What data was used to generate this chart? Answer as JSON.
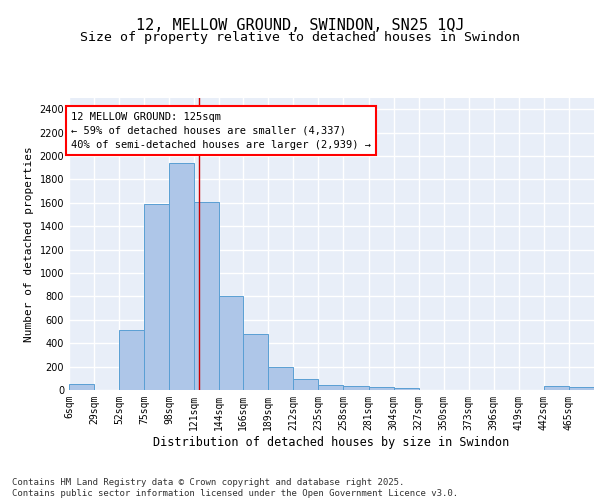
{
  "title": "12, MELLOW GROUND, SWINDON, SN25 1QJ",
  "subtitle": "Size of property relative to detached houses in Swindon",
  "xlabel": "Distribution of detached houses by size in Swindon",
  "ylabel": "Number of detached properties",
  "bar_color": "#aec6e8",
  "bar_edge_color": "#5a9fd4",
  "background_color": "#e8eef8",
  "grid_color": "#ffffff",
  "annotation_line1": "12 MELLOW GROUND: 125sqm",
  "annotation_line2": "← 59% of detached houses are smaller (4,337)",
  "annotation_line3": "40% of semi-detached houses are larger (2,939) →",
  "vline_x": 125,
  "vline_color": "#cc0000",
  "categories": [
    "6sqm",
    "29sqm",
    "52sqm",
    "75sqm",
    "98sqm",
    "121sqm",
    "144sqm",
    "166sqm",
    "189sqm",
    "212sqm",
    "235sqm",
    "258sqm",
    "281sqm",
    "304sqm",
    "327sqm",
    "350sqm",
    "373sqm",
    "396sqm",
    "419sqm",
    "442sqm",
    "465sqm"
  ],
  "bin_edges": [
    6,
    29,
    52,
    75,
    98,
    121,
    144,
    166,
    189,
    212,
    235,
    258,
    281,
    304,
    327,
    350,
    373,
    396,
    419,
    442,
    465,
    488
  ],
  "values": [
    55,
    0,
    510,
    1590,
    1940,
    1610,
    805,
    475,
    200,
    95,
    45,
    35,
    25,
    15,
    0,
    0,
    0,
    0,
    0,
    30,
    25
  ],
  "ylim": [
    0,
    2500
  ],
  "yticks": [
    0,
    200,
    400,
    600,
    800,
    1000,
    1200,
    1400,
    1600,
    1800,
    2000,
    2200,
    2400
  ],
  "footer_text": "Contains HM Land Registry data © Crown copyright and database right 2025.\nContains public sector information licensed under the Open Government Licence v3.0.",
  "title_fontsize": 11,
  "subtitle_fontsize": 9.5,
  "xlabel_fontsize": 8.5,
  "ylabel_fontsize": 8,
  "tick_fontsize": 7,
  "annotation_fontsize": 7.5,
  "footer_fontsize": 6.5
}
